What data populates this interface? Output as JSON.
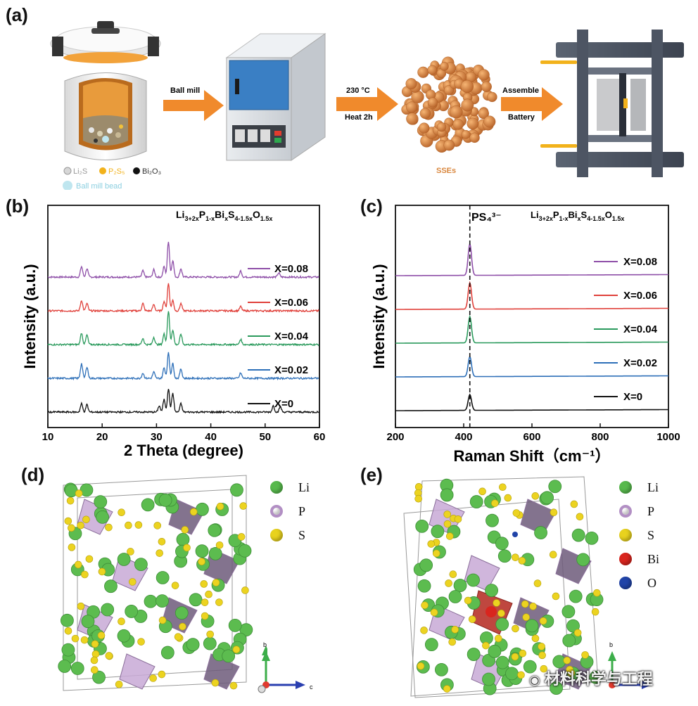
{
  "panels": {
    "a": "(a)",
    "b": "(b)",
    "c": "(c)",
    "d": "(d)",
    "e": "(e)"
  },
  "process": {
    "step1": "Ball mill",
    "step2_line1": "230 °C",
    "step2_line2": "Heat 2h",
    "step3_line1": "Assemble",
    "step3_line2": "Battery",
    "product": "SSEs",
    "reagents": [
      "Li₂S",
      "P₂S₅",
      "Bi₂O₃"
    ],
    "bead": "Ball mill bead",
    "colors": {
      "arrow": "#f08a2c",
      "furnace": "#3a7fc4",
      "particles": "#d9873e",
      "press": "#4d5563"
    }
  },
  "formula": {
    "base": "Li",
    "sub1": "3+2x",
    "mid1": "P",
    "sub2": "1-x",
    "mid2": "Bi",
    "sub3": "x",
    "mid3": "S",
    "sub4": "4-1.5x",
    "mid4": "O",
    "sub5": "1.5x"
  },
  "chart_data": [
    {
      "type": "line",
      "panel": "b",
      "xlabel": "2 Theta (degree)",
      "ylabel": "Intensity (a.u.)",
      "xlim": [
        10,
        60
      ],
      "xticks": [
        10,
        20,
        30,
        40,
        50,
        60
      ],
      "series": [
        {
          "name": "X=0.08",
          "color": "#8e4fa8",
          "offset": 4,
          "peaks": [
            [
              16.2,
              0.5
            ],
            [
              17.2,
              0.4
            ],
            [
              27.5,
              0.3
            ],
            [
              29.5,
              0.35
            ],
            [
              31.4,
              0.5
            ],
            [
              32.2,
              1.7
            ],
            [
              33.0,
              0.8
            ],
            [
              34.5,
              0.4
            ],
            [
              45.5,
              0.3
            ],
            [
              52.5,
              0.2
            ]
          ]
        },
        {
          "name": "X=0.06",
          "color": "#e0403a",
          "offset": 3,
          "peaks": [
            [
              16.2,
              0.5
            ],
            [
              17.2,
              0.35
            ],
            [
              27.5,
              0.35
            ],
            [
              29.5,
              0.3
            ],
            [
              31.4,
              0.45
            ],
            [
              32.2,
              1.3
            ],
            [
              33.0,
              0.5
            ],
            [
              34.5,
              0.35
            ],
            [
              45.5,
              0.2
            ]
          ]
        },
        {
          "name": "X=0.04",
          "color": "#2a9a5c",
          "offset": 2,
          "peaks": [
            [
              16.2,
              0.55
            ],
            [
              17.2,
              0.45
            ],
            [
              27.5,
              0.3
            ],
            [
              29.5,
              0.35
            ],
            [
              31.4,
              0.5
            ],
            [
              32.2,
              1.6
            ],
            [
              33.0,
              0.7
            ],
            [
              34.5,
              0.5
            ],
            [
              45.5,
              0.25
            ]
          ]
        },
        {
          "name": "X=0.02",
          "color": "#2d6fb8",
          "offset": 1,
          "peaks": [
            [
              16.2,
              0.7
            ],
            [
              17.2,
              0.55
            ],
            [
              27.5,
              0.25
            ],
            [
              29.5,
              0.3
            ],
            [
              31.4,
              0.5
            ],
            [
              32.2,
              1.2
            ],
            [
              33.0,
              0.7
            ],
            [
              34.5,
              0.45
            ],
            [
              45.5,
              0.25
            ]
          ]
        },
        {
          "name": "X=0",
          "color": "#111111",
          "offset": 0,
          "peaks": [
            [
              16.2,
              0.4
            ],
            [
              17.2,
              0.35
            ],
            [
              30.5,
              0.3
            ],
            [
              31.4,
              0.6
            ],
            [
              32.2,
              1.1
            ],
            [
              33.0,
              0.9
            ],
            [
              34.5,
              0.4
            ],
            [
              51.5,
              0.3
            ],
            [
              52.8,
              0.25
            ]
          ]
        }
      ]
    },
    {
      "type": "line",
      "panel": "c",
      "xlabel": "Raman Shift（cm⁻¹）",
      "ylabel": "Intensity (a.u.)",
      "xlim": [
        200,
        1000
      ],
      "xticks": [
        200,
        400,
        600,
        800,
        1000
      ],
      "annotation": "PS₄³⁻",
      "dashed_x": 418,
      "series": [
        {
          "name": "X=0.08",
          "color": "#8e4fa8",
          "offset": 4,
          "peak": 1.5
        },
        {
          "name": "X=0.06",
          "color": "#e0403a",
          "offset": 3,
          "peak": 1.25
        },
        {
          "name": "X=0.04",
          "color": "#2a9a5c",
          "offset": 2,
          "peak": 1.25
        },
        {
          "name": "X=0.02",
          "color": "#2d6fb8",
          "offset": 1,
          "peak": 0.95
        },
        {
          "name": "X=0",
          "color": "#111111",
          "offset": 0,
          "peak": 0.75
        }
      ]
    }
  ],
  "structure_d": {
    "legend": [
      {
        "label": "Li",
        "color": "#57b94c"
      },
      {
        "label": "P",
        "color": "#b28fc4"
      },
      {
        "label": "S",
        "color": "#e8d21e"
      }
    ]
  },
  "structure_e": {
    "legend": [
      {
        "label": "Li",
        "color": "#57b94c"
      },
      {
        "label": "P",
        "color": "#b28fc4"
      },
      {
        "label": "S",
        "color": "#e8d21e"
      },
      {
        "label": "Bi",
        "color": "#d9251e"
      },
      {
        "label": "O",
        "color": "#2144a8"
      }
    ]
  },
  "axes_glyphs": {
    "b": "b",
    "c": "c"
  },
  "watermark": "材料科学与工程"
}
